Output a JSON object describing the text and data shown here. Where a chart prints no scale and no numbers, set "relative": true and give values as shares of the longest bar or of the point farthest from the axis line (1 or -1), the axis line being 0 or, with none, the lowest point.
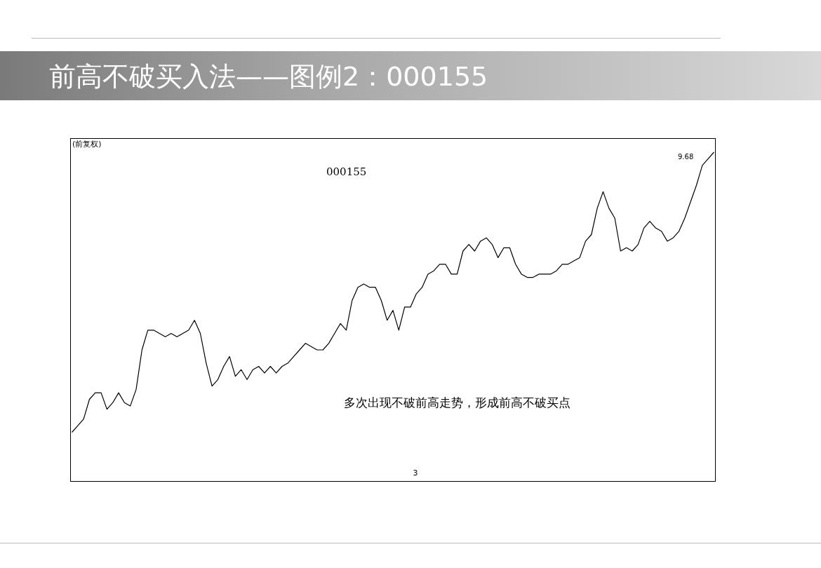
{
  "chart_data": {
    "type": "line",
    "title": "前高不破买入法——图例2：000155",
    "subtitle": "000155",
    "relative": true,
    "categories": [
      null,
      null,
      null,
      null,
      null,
      null,
      null,
      null,
      null,
      null,
      null,
      null,
      null,
      null,
      null,
      null,
      null,
      null,
      null,
      null,
      null,
      null,
      null,
      null,
      null,
      null,
      null,
      null,
      null,
      null,
      null,
      null,
      null,
      null,
      null,
      null,
      null,
      null,
      null,
      null,
      null,
      null,
      null,
      null,
      null,
      null,
      null,
      null,
      null,
      null,
      null,
      null,
      null,
      null,
      null,
      null,
      null,
      null,
      null,
      null,
      null,
      null,
      null,
      null,
      null,
      null,
      null,
      null,
      null,
      null,
      null,
      null,
      null,
      null,
      null,
      null,
      null,
      null,
      null,
      null,
      null,
      null,
      null,
      null,
      null,
      null,
      null,
      null,
      null,
      null,
      null,
      null,
      null,
      null,
      null,
      null,
      null,
      null,
      null,
      null,
      null,
      null,
      null,
      null,
      null,
      null,
      null,
      null,
      null,
      null,
      null
    ],
    "series": [
      {
        "color": "#000000",
        "values": [
          0.15,
          0.17,
          0.19,
          0.25,
          0.27,
          0.27,
          0.22,
          0.24,
          0.27,
          0.24,
          0.23,
          0.28,
          0.4,
          0.46,
          0.46,
          0.45,
          0.44,
          0.45,
          0.44,
          0.45,
          0.46,
          0.49,
          0.45,
          0.36,
          0.29,
          0.31,
          0.35,
          0.38,
          0.32,
          0.34,
          0.31,
          0.34,
          0.35,
          0.33,
          0.35,
          0.33,
          0.35,
          0.36,
          0.38,
          0.4,
          0.42,
          0.41,
          0.4,
          0.4,
          0.42,
          0.45,
          0.48,
          0.46,
          0.55,
          0.59,
          0.6,
          0.59,
          0.59,
          0.55,
          0.49,
          0.52,
          0.46,
          0.53,
          0.53,
          0.57,
          0.59,
          0.63,
          0.64,
          0.66,
          0.66,
          0.63,
          0.63,
          0.7,
          0.72,
          0.7,
          0.73,
          0.74,
          0.72,
          0.68,
          0.71,
          0.71,
          0.66,
          0.63,
          0.62,
          0.62,
          0.63,
          0.63,
          0.63,
          0.64,
          0.66,
          0.66,
          0.67,
          0.68,
          0.73,
          0.75,
          0.83,
          0.88,
          0.83,
          0.8,
          0.7,
          0.71,
          0.7,
          0.72,
          0.77,
          0.79,
          0.77,
          0.76,
          0.73,
          0.74,
          0.76,
          0.8,
          0.85,
          0.9,
          0.96,
          0.98,
          1
        ]
      }
    ],
    "annotations": [
      "(前复权)",
      "9.68",
      "多次出现不破前高走势，形成前高不破买点",
      "3"
    ]
  }
}
